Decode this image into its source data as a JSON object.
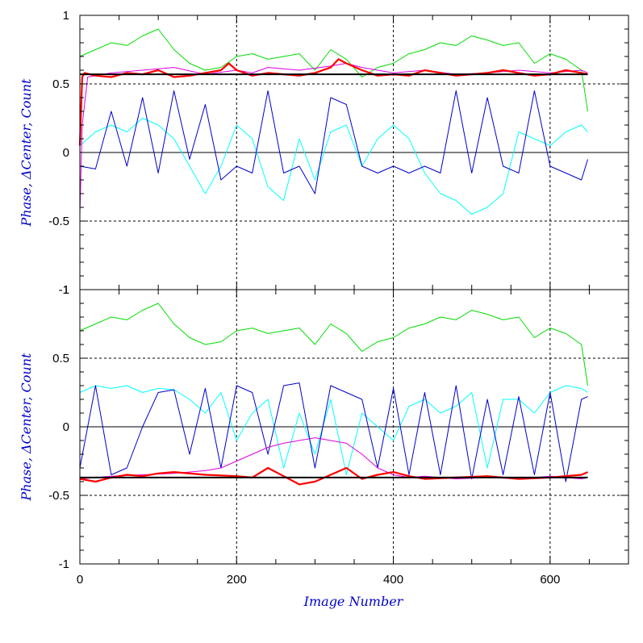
{
  "chart_data": [
    {
      "type": "line",
      "panel": "top",
      "xlabel": "",
      "ylabel": "Phase, ΔCenter, Count",
      "xlim": [
        0,
        700
      ],
      "ylim": [
        -1,
        1
      ],
      "x_ticks": [
        "0",
        "200",
        "400",
        "600"
      ],
      "y_ticks": [
        "-1",
        "-0.5",
        "0",
        "0.5",
        "1"
      ],
      "grid": "dashed at x=200,400,600 and y=±0.5; solid at y=0",
      "reference_line": 0.57,
      "series": [
        {
          "color": "#00dd00",
          "x": [
            0,
            20,
            40,
            60,
            80,
            100,
            120,
            140,
            160,
            180,
            200,
            220,
            240,
            260,
            280,
            300,
            320,
            340,
            360,
            380,
            400,
            420,
            440,
            460,
            480,
            500,
            520,
            540,
            560,
            580,
            600,
            620,
            640,
            648
          ],
          "y": [
            0.7,
            0.75,
            0.8,
            0.78,
            0.85,
            0.9,
            0.75,
            0.65,
            0.6,
            0.62,
            0.7,
            0.72,
            0.68,
            0.7,
            0.72,
            0.6,
            0.75,
            0.68,
            0.55,
            0.62,
            0.65,
            0.72,
            0.75,
            0.8,
            0.78,
            0.85,
            0.82,
            0.78,
            0.8,
            0.65,
            0.72,
            0.68,
            0.6,
            0.3
          ]
        },
        {
          "color": "#00ffff",
          "x": [
            0,
            20,
            40,
            60,
            80,
            100,
            120,
            140,
            160,
            180,
            200,
            220,
            240,
            260,
            280,
            300,
            320,
            340,
            360,
            380,
            400,
            420,
            440,
            460,
            480,
            500,
            520,
            540,
            560,
            580,
            600,
            620,
            640,
            648
          ],
          "y": [
            0.05,
            0.15,
            0.2,
            0.15,
            0.25,
            0.2,
            0.1,
            -0.1,
            -0.3,
            -0.1,
            0.2,
            0.1,
            -0.25,
            -0.35,
            0.1,
            -0.2,
            0.15,
            0.2,
            -0.1,
            0.1,
            0.2,
            0.1,
            -0.15,
            -0.3,
            -0.35,
            -0.45,
            -0.4,
            -0.3,
            0.15,
            0.1,
            0.05,
            0.15,
            0.2,
            0.15
          ]
        },
        {
          "color": "#0000cc",
          "x": [
            0,
            20,
            40,
            60,
            80,
            100,
            120,
            140,
            160,
            180,
            200,
            220,
            240,
            260,
            280,
            300,
            320,
            340,
            360,
            380,
            400,
            420,
            440,
            460,
            480,
            500,
            520,
            540,
            560,
            580,
            600,
            620,
            640,
            648
          ],
          "y": [
            -0.1,
            -0.12,
            0.3,
            -0.1,
            0.4,
            -0.15,
            0.45,
            -0.05,
            0.35,
            -0.2,
            -0.1,
            -0.15,
            0.45,
            -0.15,
            -0.1,
            -0.3,
            0.4,
            0.35,
            -0.1,
            -0.15,
            -0.1,
            -0.15,
            -0.1,
            -0.15,
            0.45,
            -0.15,
            0.4,
            -0.1,
            -0.15,
            0.45,
            -0.1,
            -0.15,
            -0.2,
            -0.05
          ]
        },
        {
          "color": "#dd00dd",
          "x": [
            0,
            3,
            10,
            40,
            80,
            120,
            160,
            200,
            220,
            240,
            280,
            320,
            340,
            360,
            400,
            440,
            480,
            520,
            560,
            600,
            640,
            648
          ],
          "y": [
            -0.45,
            0.2,
            0.55,
            0.58,
            0.6,
            0.62,
            0.57,
            0.6,
            0.58,
            0.62,
            0.6,
            0.63,
            0.65,
            0.62,
            0.58,
            0.6,
            0.57,
            0.58,
            0.6,
            0.58,
            0.6,
            0.58
          ]
        },
        {
          "color": "#ff0000",
          "x": [
            0,
            3,
            6,
            20,
            40,
            60,
            80,
            100,
            120,
            140,
            160,
            180,
            190,
            200,
            220,
            240,
            260,
            280,
            300,
            320,
            330,
            340,
            360,
            380,
            400,
            420,
            440,
            460,
            480,
            500,
            520,
            540,
            560,
            580,
            600,
            620,
            640,
            648
          ],
          "y": [
            0.05,
            0.55,
            0.58,
            0.56,
            0.55,
            0.58,
            0.57,
            0.6,
            0.55,
            0.56,
            0.58,
            0.6,
            0.65,
            0.6,
            0.56,
            0.58,
            0.57,
            0.56,
            0.58,
            0.62,
            0.68,
            0.65,
            0.6,
            0.56,
            0.57,
            0.56,
            0.6,
            0.58,
            0.56,
            0.57,
            0.58,
            0.6,
            0.58,
            0.56,
            0.57,
            0.6,
            0.58,
            0.57
          ]
        }
      ]
    },
    {
      "type": "line",
      "panel": "bottom",
      "xlabel": "Image Number",
      "ylabel": "Phase, ΔCenter, Count",
      "xlim": [
        0,
        700
      ],
      "ylim": [
        -1,
        1
      ],
      "x_ticks": [
        "0",
        "200",
        "400",
        "600"
      ],
      "y_ticks": [
        "-1",
        "-0.5",
        "0",
        "0.5",
        "1"
      ],
      "grid": "dashed at x=200,400,600 and y=±0.5; solid at y=0",
      "reference_line": -0.37,
      "series": [
        {
          "color": "#00dd00",
          "x": [
            0,
            20,
            40,
            60,
            80,
            100,
            120,
            140,
            160,
            180,
            200,
            220,
            240,
            260,
            280,
            300,
            320,
            340,
            360,
            380,
            400,
            420,
            440,
            460,
            480,
            500,
            520,
            540,
            560,
            580,
            600,
            620,
            640,
            648
          ],
          "y": [
            0.7,
            0.75,
            0.8,
            0.78,
            0.85,
            0.9,
            0.75,
            0.65,
            0.6,
            0.62,
            0.7,
            0.72,
            0.68,
            0.7,
            0.72,
            0.6,
            0.75,
            0.68,
            0.55,
            0.62,
            0.65,
            0.72,
            0.75,
            0.8,
            0.78,
            0.85,
            0.82,
            0.78,
            0.8,
            0.65,
            0.72,
            0.68,
            0.6,
            0.3
          ]
        },
        {
          "color": "#00ffff",
          "x": [
            0,
            20,
            40,
            60,
            80,
            100,
            120,
            140,
            160,
            180,
            200,
            220,
            240,
            260,
            280,
            300,
            320,
            340,
            360,
            380,
            400,
            420,
            440,
            460,
            480,
            500,
            520,
            540,
            560,
            580,
            600,
            620,
            640,
            648
          ],
          "y": [
            0.25,
            0.3,
            0.28,
            0.3,
            0.25,
            0.28,
            0.27,
            0.2,
            0.1,
            0.25,
            -0.1,
            0.1,
            0.2,
            -0.3,
            0.1,
            -0.2,
            0.2,
            -0.35,
            0.1,
            0.0,
            -0.1,
            0.15,
            0.2,
            0.1,
            0.15,
            0.25,
            -0.3,
            0.2,
            0.2,
            0.1,
            0.25,
            0.3,
            0.28,
            0.25
          ]
        },
        {
          "color": "#0000cc",
          "x": [
            0,
            20,
            40,
            60,
            80,
            100,
            120,
            140,
            160,
            180,
            200,
            220,
            240,
            260,
            280,
            300,
            320,
            340,
            360,
            380,
            400,
            420,
            440,
            460,
            480,
            500,
            520,
            540,
            560,
            580,
            600,
            620,
            640,
            648
          ],
          "y": [
            -0.3,
            0.3,
            -0.35,
            -0.3,
            0.0,
            0.25,
            0.27,
            -0.2,
            0.28,
            -0.3,
            0.3,
            0.25,
            -0.2,
            0.3,
            0.32,
            -0.3,
            0.3,
            0.25,
            0.2,
            -0.3,
            0.28,
            -0.35,
            0.25,
            -0.35,
            0.3,
            -0.38,
            0.2,
            -0.35,
            0.22,
            -0.35,
            0.25,
            -0.4,
            0.2,
            0.22
          ]
        },
        {
          "color": "#dd00dd",
          "x": [
            0,
            40,
            80,
            120,
            160,
            180,
            200,
            220,
            240,
            260,
            280,
            300,
            320,
            340,
            360,
            380,
            400,
            420,
            440,
            480,
            520,
            560,
            600,
            640,
            648
          ],
          "y": [
            -0.38,
            -0.36,
            -0.35,
            -0.34,
            -0.32,
            -0.3,
            -0.25,
            -0.2,
            -0.15,
            -0.12,
            -0.1,
            -0.08,
            -0.1,
            -0.12,
            -0.2,
            -0.3,
            -0.35,
            -0.37,
            -0.36,
            -0.38,
            -0.37,
            -0.38,
            -0.36,
            -0.38,
            -0.37
          ]
        },
        {
          "color": "#ff0000",
          "x": [
            0,
            20,
            40,
            60,
            80,
            100,
            120,
            160,
            200,
            220,
            240,
            260,
            280,
            300,
            320,
            340,
            360,
            380,
            400,
            420,
            440,
            480,
            520,
            560,
            600,
            640,
            648
          ],
          "y": [
            -0.38,
            -0.4,
            -0.37,
            -0.35,
            -0.36,
            -0.34,
            -0.33,
            -0.35,
            -0.36,
            -0.37,
            -0.3,
            -0.36,
            -0.42,
            -0.4,
            -0.35,
            -0.3,
            -0.38,
            -0.35,
            -0.33,
            -0.36,
            -0.38,
            -0.37,
            -0.36,
            -0.38,
            -0.37,
            -0.35,
            -0.33
          ]
        }
      ]
    }
  ]
}
